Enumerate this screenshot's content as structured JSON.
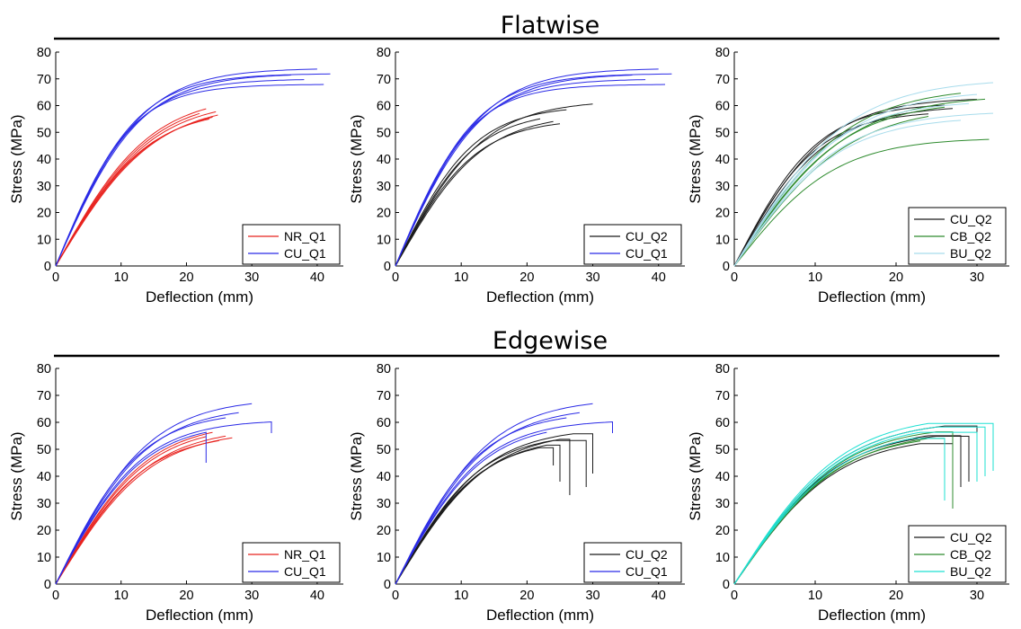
{
  "sections": [
    {
      "title": "Flatwise"
    },
    {
      "title": "Edgewise"
    }
  ],
  "colors": {
    "NR_Q1": "#e8231f",
    "CU_Q1": "#2a2ae6",
    "CU_Q2": "#1a1a1a",
    "CB_Q2": "#2e8b2e",
    "BU_Q2_flat": "#a8dcec",
    "BU_Q2_edge": "#1ee0d2"
  },
  "chart_data": [
    {
      "type": "line",
      "section": "Flatwise",
      "xlabel": "Deflection (mm)",
      "ylabel": "Stress (MPa)",
      "xlim": [
        0,
        44
      ],
      "ylim": [
        0,
        80
      ],
      "xticks": [
        0,
        10,
        20,
        30,
        40
      ],
      "yticks": [
        0,
        10,
        20,
        30,
        40,
        50,
        60,
        70,
        80
      ],
      "legend": "bottom-right",
      "series": [
        {
          "name": "NR_Q1",
          "color": "#e8231f",
          "curves": [
            {
              "E": 4.2,
              "ymax": 62,
              "xend": 24.5
            },
            {
              "E": 4.3,
              "ymax": 63,
              "xend": 22.0
            },
            {
              "E": 4.1,
              "ymax": 60,
              "xend": 24.0
            },
            {
              "E": 4.4,
              "ymax": 64,
              "xend": 23.0
            },
            {
              "E": 4.2,
              "ymax": 59,
              "xend": 23.5
            },
            {
              "E": 4.0,
              "ymax": 61,
              "xend": 24.8
            }
          ]
        },
        {
          "name": "CU_Q1",
          "color": "#2a2ae6",
          "curves": [
            {
              "E": 5.8,
              "ymax": 72,
              "xend": 42.0
            },
            {
              "E": 5.6,
              "ymax": 74,
              "xend": 40.0
            },
            {
              "E": 5.7,
              "ymax": 70,
              "xend": 38.0
            },
            {
              "E": 5.5,
              "ymax": 72,
              "xend": 36.0
            },
            {
              "E": 5.9,
              "ymax": 68,
              "xend": 41.0
            }
          ]
        }
      ]
    },
    {
      "type": "line",
      "section": "Flatwise",
      "xlabel": "Deflection (mm)",
      "ylabel": "Stress (MPa)",
      "xlim": [
        0,
        44
      ],
      "ylim": [
        0,
        80
      ],
      "xticks": [
        0,
        10,
        20,
        30,
        40
      ],
      "yticks": [
        0,
        10,
        20,
        30,
        40,
        50,
        60,
        70,
        80
      ],
      "legend": "bottom-right",
      "series": [
        {
          "name": "CU_Q2",
          "color": "#1a1a1a",
          "curves": [
            {
              "E": 4.6,
              "ymax": 62,
              "xend": 30.0
            },
            {
              "E": 5.0,
              "ymax": 60,
              "xend": 26.0
            },
            {
              "E": 4.3,
              "ymax": 57,
              "xend": 24.0
            },
            {
              "E": 4.8,
              "ymax": 58,
              "xend": 22.0
            },
            {
              "E": 4.5,
              "ymax": 55,
              "xend": 25.0
            }
          ]
        },
        {
          "name": "CU_Q1",
          "color": "#2a2ae6",
          "curves": [
            {
              "E": 5.8,
              "ymax": 72,
              "xend": 42.0
            },
            {
              "E": 5.6,
              "ymax": 74,
              "xend": 40.0
            },
            {
              "E": 5.7,
              "ymax": 70,
              "xend": 38.0
            },
            {
              "E": 5.5,
              "ymax": 72,
              "xend": 36.0
            },
            {
              "E": 5.9,
              "ymax": 68,
              "xend": 41.0
            }
          ]
        }
      ]
    },
    {
      "type": "line",
      "section": "Flatwise",
      "xlabel": "Deflection (mm)",
      "ylabel": "Stress (MPa)",
      "xlim": [
        0,
        34
      ],
      "ylim": [
        0,
        80
      ],
      "xticks": [
        0,
        10,
        20,
        30,
        40
      ],
      "yticks": [
        0,
        10,
        20,
        30,
        40,
        50,
        60,
        70,
        80
      ],
      "legend": "bottom-right",
      "series": [
        {
          "name": "CU_Q2",
          "color": "#1a1a1a",
          "curves": [
            {
              "E": 5.5,
              "ymax": 63,
              "xend": 30.0
            },
            {
              "E": 5.8,
              "ymax": 61,
              "xend": 26.0
            },
            {
              "E": 5.2,
              "ymax": 60,
              "xend": 27.0
            },
            {
              "E": 5.6,
              "ymax": 58,
              "xend": 24.0
            }
          ]
        },
        {
          "name": "CB_Q2",
          "color": "#2e8b2e",
          "curves": [
            {
              "E": 4.8,
              "ymax": 67,
              "xend": 28.0
            },
            {
              "E": 4.5,
              "ymax": 64,
              "xend": 31.0
            },
            {
              "E": 4.6,
              "ymax": 62,
              "xend": 26.0
            },
            {
              "E": 4.2,
              "ymax": 60,
              "xend": 24.0
            },
            {
              "E": 3.8,
              "ymax": 48,
              "xend": 31.5
            }
          ]
        },
        {
          "name": "BU_Q2",
          "color": "#a8dcec",
          "curves": [
            {
              "E": 5.0,
              "ymax": 70,
              "xend": 32.0
            },
            {
              "E": 4.7,
              "ymax": 66,
              "xend": 30.0
            },
            {
              "E": 4.9,
              "ymax": 62,
              "xend": 29.0
            },
            {
              "E": 4.4,
              "ymax": 58,
              "xend": 32.0
            },
            {
              "E": 4.3,
              "ymax": 56,
              "xend": 28.0
            }
          ]
        }
      ]
    },
    {
      "type": "line",
      "section": "Edgewise",
      "xlabel": "Deflection (mm)",
      "ylabel": "Stress (MPa)",
      "xlim": [
        0,
        44
      ],
      "ylim": [
        0,
        80
      ],
      "xticks": [
        0,
        10,
        20,
        30,
        40
      ],
      "yticks": [
        0,
        10,
        20,
        30,
        40,
        50,
        60,
        70,
        80
      ],
      "legend": "bottom-right",
      "series": [
        {
          "name": "NR_Q1",
          "color": "#e8231f",
          "curves": [
            {
              "E": 4.2,
              "ymax": 59,
              "xend": 23.0
            },
            {
              "E": 4.0,
              "ymax": 58,
              "xend": 26.0
            },
            {
              "E": 4.3,
              "ymax": 60,
              "xend": 24.0
            },
            {
              "E": 3.9,
              "ymax": 57,
              "xend": 27.0
            },
            {
              "E": 4.1,
              "ymax": 56,
              "xend": 25.0
            }
          ]
        },
        {
          "name": "CU_Q1",
          "color": "#2a2ae6",
          "curves": [
            {
              "E": 4.8,
              "ymax": 69,
              "xend": 30.0
            },
            {
              "E": 4.7,
              "ymax": 66,
              "xend": 28.0
            },
            {
              "E": 4.9,
              "ymax": 64,
              "xend": 26.0
            },
            {
              "E": 4.6,
              "ymax": 61,
              "xend": 33.0,
              "drop": [
                33.0,
                56
              ]
            },
            {
              "E": 4.5,
              "ymax": 60,
              "xend": 23.0,
              "drop": [
                23.0,
                45
              ]
            }
          ]
        }
      ]
    },
    {
      "type": "line",
      "section": "Edgewise",
      "xlabel": "Deflection (mm)",
      "ylabel": "Stress (MPa)",
      "xlim": [
        0,
        44
      ],
      "ylim": [
        0,
        80
      ],
      "xticks": [
        0,
        10,
        20,
        30,
        40
      ],
      "yticks": [
        0,
        10,
        20,
        30,
        40,
        50,
        60,
        70,
        80
      ],
      "legend": "bottom-right",
      "series": [
        {
          "name": "CU_Q2",
          "color": "#1a1a1a",
          "curves": [
            {
              "E": 4.2,
              "ymax": 58,
              "xend": 27.0,
              "drop": [
                30.0,
                41
              ]
            },
            {
              "E": 4.0,
              "ymax": 57,
              "xend": 25.0,
              "drop": [
                26.5,
                33
              ]
            },
            {
              "E": 4.3,
              "ymax": 56,
              "xend": 24.0,
              "drop": [
                29.0,
                36
              ]
            },
            {
              "E": 4.1,
              "ymax": 55,
              "xend": 23.0,
              "drop": [
                25.0,
                38
              ]
            },
            {
              "E": 4.2,
              "ymax": 54,
              "xend": 22.0,
              "drop": [
                24.0,
                44
              ]
            }
          ]
        },
        {
          "name": "CU_Q1",
          "color": "#2a2ae6",
          "curves": [
            {
              "E": 4.8,
              "ymax": 69,
              "xend": 30.0
            },
            {
              "E": 4.7,
              "ymax": 66,
              "xend": 28.0
            },
            {
              "E": 4.9,
              "ymax": 64,
              "xend": 26.0
            },
            {
              "E": 4.6,
              "ymax": 61,
              "xend": 33.0,
              "drop": [
                33.0,
                56
              ]
            },
            {
              "E": 4.5,
              "ymax": 60,
              "xend": 23.0
            }
          ]
        }
      ]
    },
    {
      "type": "line",
      "section": "Edgewise",
      "xlabel": "Deflection (mm)",
      "ylabel": "Stress (MPa)",
      "xlim": [
        0,
        34
      ],
      "ylim": [
        0,
        80
      ],
      "xticks": [
        0,
        10,
        20,
        30,
        40
      ],
      "yticks": [
        0,
        10,
        20,
        30,
        40,
        50,
        60,
        70,
        80
      ],
      "legend": "bottom-right",
      "series": [
        {
          "name": "CU_Q2",
          "color": "#1a1a1a",
          "curves": [
            {
              "E": 4.6,
              "ymax": 61,
              "xend": 26.0,
              "drop": [
                30.0,
                43
              ]
            },
            {
              "E": 4.4,
              "ymax": 58,
              "xend": 24.0,
              "drop": [
                28.0,
                36
              ]
            },
            {
              "E": 4.5,
              "ymax": 57,
              "xend": 25.0,
              "drop": [
                29.0,
                38
              ]
            },
            {
              "E": 4.3,
              "ymax": 55,
              "xend": 23.0,
              "drop": [
                27.0,
                30
              ]
            }
          ]
        },
        {
          "name": "CB_Q2",
          "color": "#2e8b2e",
          "curves": [
            {
              "E": 4.5,
              "ymax": 59,
              "xend": 25.0,
              "drop": [
                27.0,
                28
              ]
            },
            {
              "E": 4.3,
              "ymax": 57,
              "xend": 24.0,
              "drop": [
                26.0,
                32
              ]
            },
            {
              "E": 4.4,
              "ymax": 56,
              "xend": 23.0
            }
          ]
        },
        {
          "name": "BU_Q2",
          "color": "#1ee0d2",
          "curves": [
            {
              "E": 4.7,
              "ymax": 63,
              "xend": 24.0,
              "drop": [
                32.0,
                42
              ]
            },
            {
              "E": 4.5,
              "ymax": 60,
              "xend": 23.0,
              "drop": [
                30.0,
                38
              ]
            },
            {
              "E": 4.4,
              "ymax": 58,
              "xend": 22.0,
              "drop": [
                26.0,
                31
              ]
            },
            {
              "E": 4.6,
              "ymax": 61,
              "xend": 25.0,
              "drop": [
                31.0,
                40
              ]
            }
          ]
        }
      ]
    }
  ]
}
